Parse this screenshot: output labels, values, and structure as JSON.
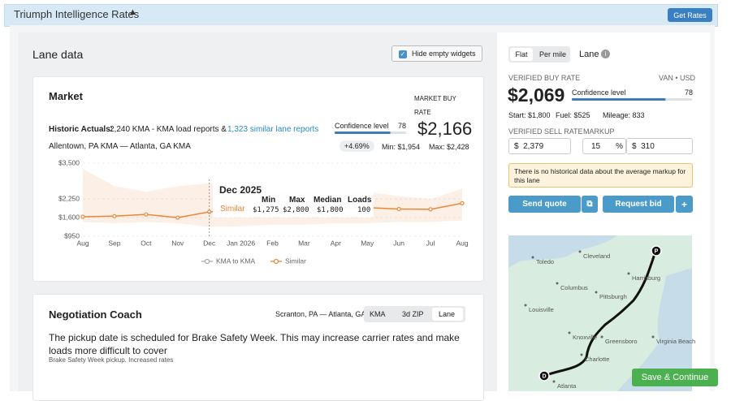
{
  "header": {
    "title": "Triumph Intelligence Rates",
    "button": "Get Rates"
  },
  "lane_data": {
    "title": "Lane data",
    "toggle": "Hide empty widgets"
  },
  "market": {
    "title": "Market",
    "historic_label": "Historic Actuals:",
    "historic_text": "2,240 KMA - KMA load reports &",
    "historic_link": "1,323 similar lane reports",
    "route": "Allentown, PA KMA — Atlanta, GA KMA",
    "confidence_label": "Confidence level",
    "confidence": 78,
    "buy_rate_label": "MARKET BUY RATE",
    "buy_rate": "$2,166",
    "change": "+4.69%",
    "min": "Min: $1,954",
    "max": "Max: $2,428"
  },
  "chart_data": {
    "type": "line",
    "categories": [
      "Aug",
      "Sep",
      "Oct",
      "Nov",
      "Dec",
      "Jan 2026",
      "Feb",
      "Mar",
      "Apr",
      "May",
      "Jun",
      "Jul",
      "Aug"
    ],
    "ylim": [
      950,
      3500
    ],
    "yticks": [
      {
        "value": 950,
        "label": "$950"
      },
      {
        "value": 1600,
        "label": "$1,600"
      },
      {
        "value": 2250,
        "label": "$2,250"
      },
      {
        "value": 3500,
        "label": "$3,500"
      }
    ],
    "grid": true,
    "series": [
      {
        "name": "KMA to KMA",
        "color": "#aaaaaa",
        "values": [
          null,
          null,
          null,
          null,
          null,
          null,
          null,
          null,
          null,
          null,
          null,
          null,
          null
        ]
      },
      {
        "name": "Similar",
        "color": "#e8873a",
        "values": [
          1630,
          1650,
          1710,
          1600,
          1800,
          1850,
          1900,
          1950,
          1950,
          1950,
          1900,
          1890,
          2100
        ],
        "low": [
          1450,
          1400,
          1450,
          1400,
          1275,
          1300,
          1350,
          1350,
          1400,
          1400,
          1450,
          1450,
          1500
        ],
        "high": [
          3300,
          2700,
          2500,
          2700,
          2800,
          2600,
          2450,
          2500,
          2400,
          2500,
          2350,
          2250,
          2600
        ]
      }
    ],
    "tooltip": {
      "title": "Dec 2025",
      "columns": [
        "Min",
        "Max",
        "Median",
        "Loads"
      ],
      "series": "Similar",
      "cells": [
        "$1,275",
        "$2,800",
        "$1,800",
        100
      ]
    }
  },
  "negotiation": {
    "title": "Negotiation Coach",
    "route": "Scranton, PA — Atlanta, GA",
    "tabs": [
      "KMA",
      "3d ZIP",
      "Lane"
    ],
    "message": "The pickup date is scheduled for Brake Safety Week. This may increase carrier rates and make loads more difficult to cover",
    "note": "Brake Safety Week pickup. Increased rates"
  },
  "rate_panel": {
    "tabs": [
      "Flat",
      "Per mile"
    ],
    "lane": "Lane",
    "buy_label": "VERIFIED BUY RATE",
    "equipment": "VAN • USD",
    "buy_rate": "$2,069",
    "confidence_label": "Confidence level",
    "confidence": 78,
    "start": "Start: $1,800",
    "fuel": "Fuel: $525",
    "mileage": "Mileage: 833",
    "sell_label": "VERIFIED SELL RATE",
    "markup_label": "MARKUP",
    "currency": "$",
    "sell": "2,379",
    "markup_pct": "15",
    "pct": "%",
    "markup_amount": "310",
    "warning": "There is no historical data about the average markup for this lane",
    "send": "Send quote",
    "request": "Request bid"
  },
  "map": {
    "cities": [
      "Toledo",
      "Cleveland",
      "Columbus",
      "Pittsburgh",
      "Harrisburg",
      "Louisville",
      "Knoxville",
      "Greensboro",
      "Charlotte",
      "Virginia Beach",
      "Atlanta"
    ],
    "pickup": "P",
    "delivery": "D"
  },
  "footer": {
    "button": "Save & Continue"
  }
}
